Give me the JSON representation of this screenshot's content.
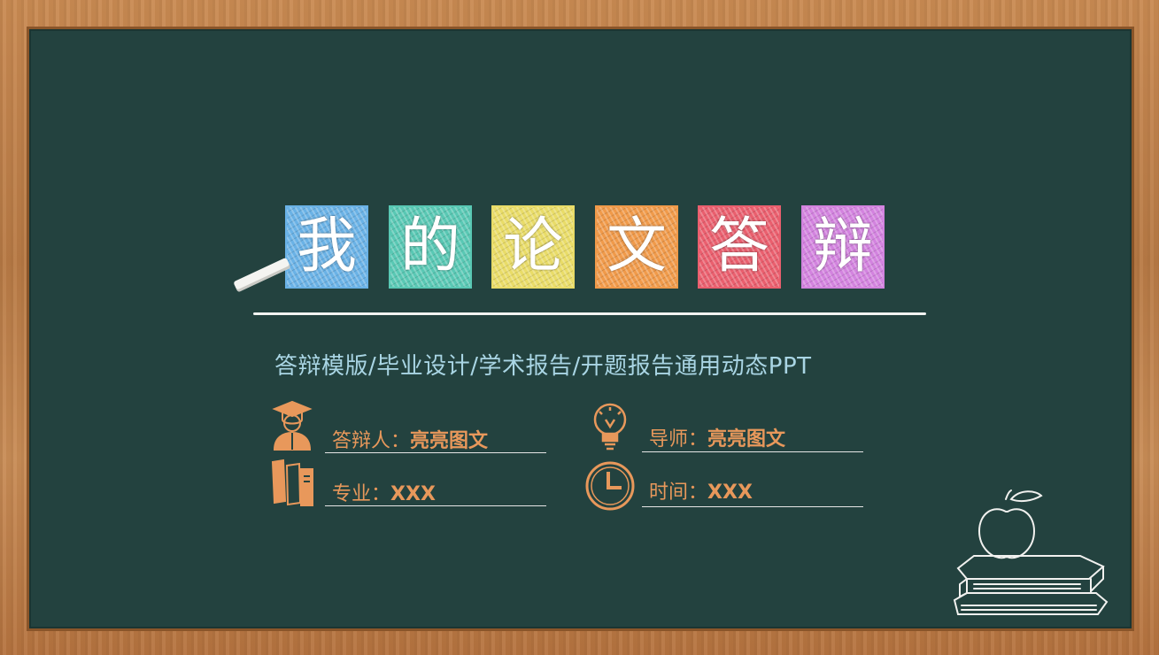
{
  "title": {
    "characters": [
      "我",
      "的",
      "论",
      "文",
      "答",
      "辩"
    ],
    "tile_colors": [
      "#6ab2e6",
      "#59c8b4",
      "#e9dc68",
      "#f09a4a",
      "#ea5f6e",
      "#d383df"
    ]
  },
  "subtitle": "答辩模版/毕业设计/学术报告/开题报告通用动态PPT",
  "fields": {
    "presenter": {
      "label": "答辩人：",
      "value": "亮亮图文"
    },
    "advisor": {
      "label": "导师：",
      "value": "亮亮图文"
    },
    "major": {
      "label": "专业：",
      "value": "XXX"
    },
    "time": {
      "label": "时间：",
      "value": "XXX"
    }
  },
  "colors": {
    "board": "#23423f",
    "accent": "#e8985b",
    "subtitle": "#a9d5e4"
  },
  "icons": [
    "graduate-icon",
    "lightbulb-icon",
    "books-icon",
    "clock-icon",
    "apple-books-icon",
    "chalk-icon"
  ]
}
